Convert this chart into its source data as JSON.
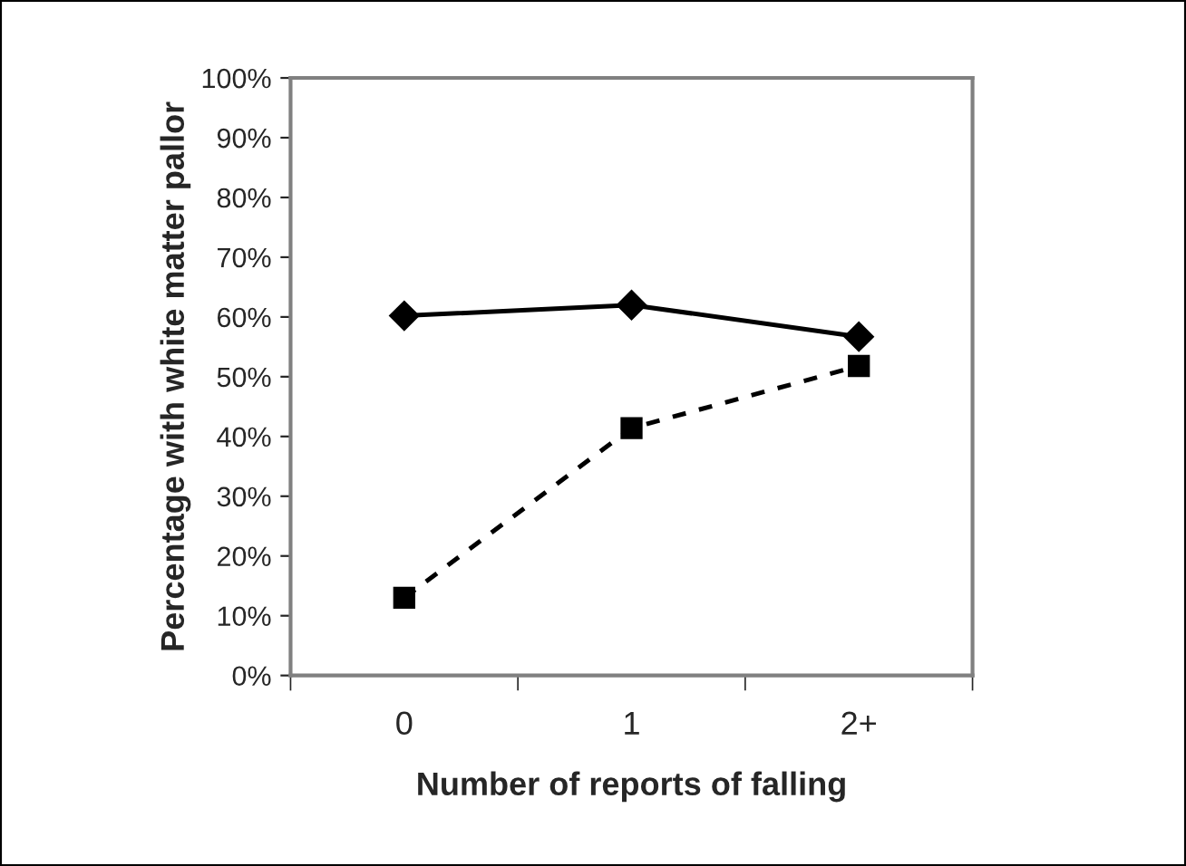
{
  "chart_data": {
    "type": "line",
    "xlabel": "Number of reports of falling",
    "ylabel": "Percentage with white matter pallor",
    "categories": [
      "0",
      "1",
      "2+"
    ],
    "series": [
      {
        "color": "#000000",
        "values": [
          60.2,
          62.0,
          56.7
        ],
        "marker": "diamond",
        "line_style": "solid"
      },
      {
        "color": "#000000",
        "values": [
          13.0,
          41.4,
          51.8
        ],
        "marker": "square",
        "line_style": "dashed"
      }
    ],
    "ylim": [
      0,
      100
    ],
    "yticks": [
      {
        "value": 0,
        "label": "0%"
      },
      {
        "value": 10,
        "label": "10%"
      },
      {
        "value": 20,
        "label": "20%"
      },
      {
        "value": 30,
        "label": "30%"
      },
      {
        "value": 40,
        "label": "40%"
      },
      {
        "value": 50,
        "label": "50%"
      },
      {
        "value": 60,
        "label": "60%"
      },
      {
        "value": 70,
        "label": "70%"
      },
      {
        "value": 80,
        "label": "80%"
      },
      {
        "value": 90,
        "label": "90%"
      },
      {
        "value": 100,
        "label": "100%"
      }
    ],
    "grid": false,
    "legend": false
  }
}
